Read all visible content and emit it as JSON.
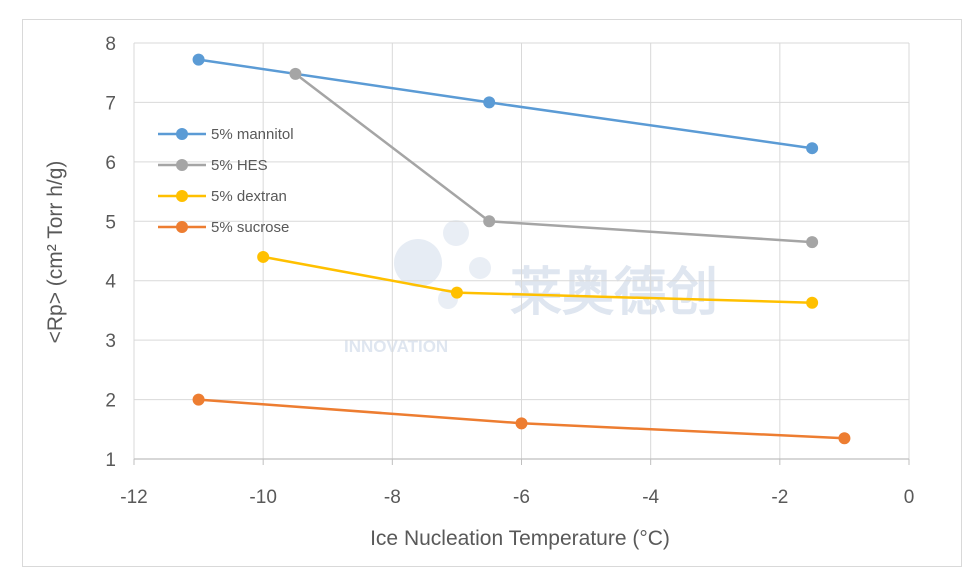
{
  "chart_data": {
    "type": "line",
    "title": "",
    "xlabel": "Ice Nucleation Temperature (°C)",
    "ylabel": "<Rp> (cm² Torr h/g)",
    "xlim": [
      -12,
      0
    ],
    "ylim": [
      1,
      8
    ],
    "xticks": [
      -12,
      -10,
      -8,
      -6,
      -4,
      -2,
      0
    ],
    "yticks": [
      1,
      2,
      3,
      4,
      5,
      6,
      7,
      8
    ],
    "grid": true,
    "legend_position": "top-left",
    "series": [
      {
        "name": "5% mannitol",
        "color": "#5b9bd5",
        "x": [
          -11,
          -6.5,
          -1.5
        ],
        "y": [
          7.72,
          7.0,
          6.23
        ]
      },
      {
        "name": "5% HES",
        "color": "#a5a5a5",
        "x": [
          -9.5,
          -6.5,
          -1.5
        ],
        "y": [
          7.48,
          5.0,
          4.65
        ]
      },
      {
        "name": "5% dextran",
        "color": "#ffc000",
        "x": [
          -10,
          -7,
          -1.5
        ],
        "y": [
          4.4,
          3.8,
          3.63
        ]
      },
      {
        "name": "5% sucrose",
        "color": "#ed7d31",
        "x": [
          -11,
          -6,
          -1
        ],
        "y": [
          2.0,
          1.6,
          1.35
        ]
      }
    ]
  },
  "watermark": {
    "latin": "INNOVATION",
    "chinese": "莱奥德创",
    "color": "#dfe6f0"
  }
}
